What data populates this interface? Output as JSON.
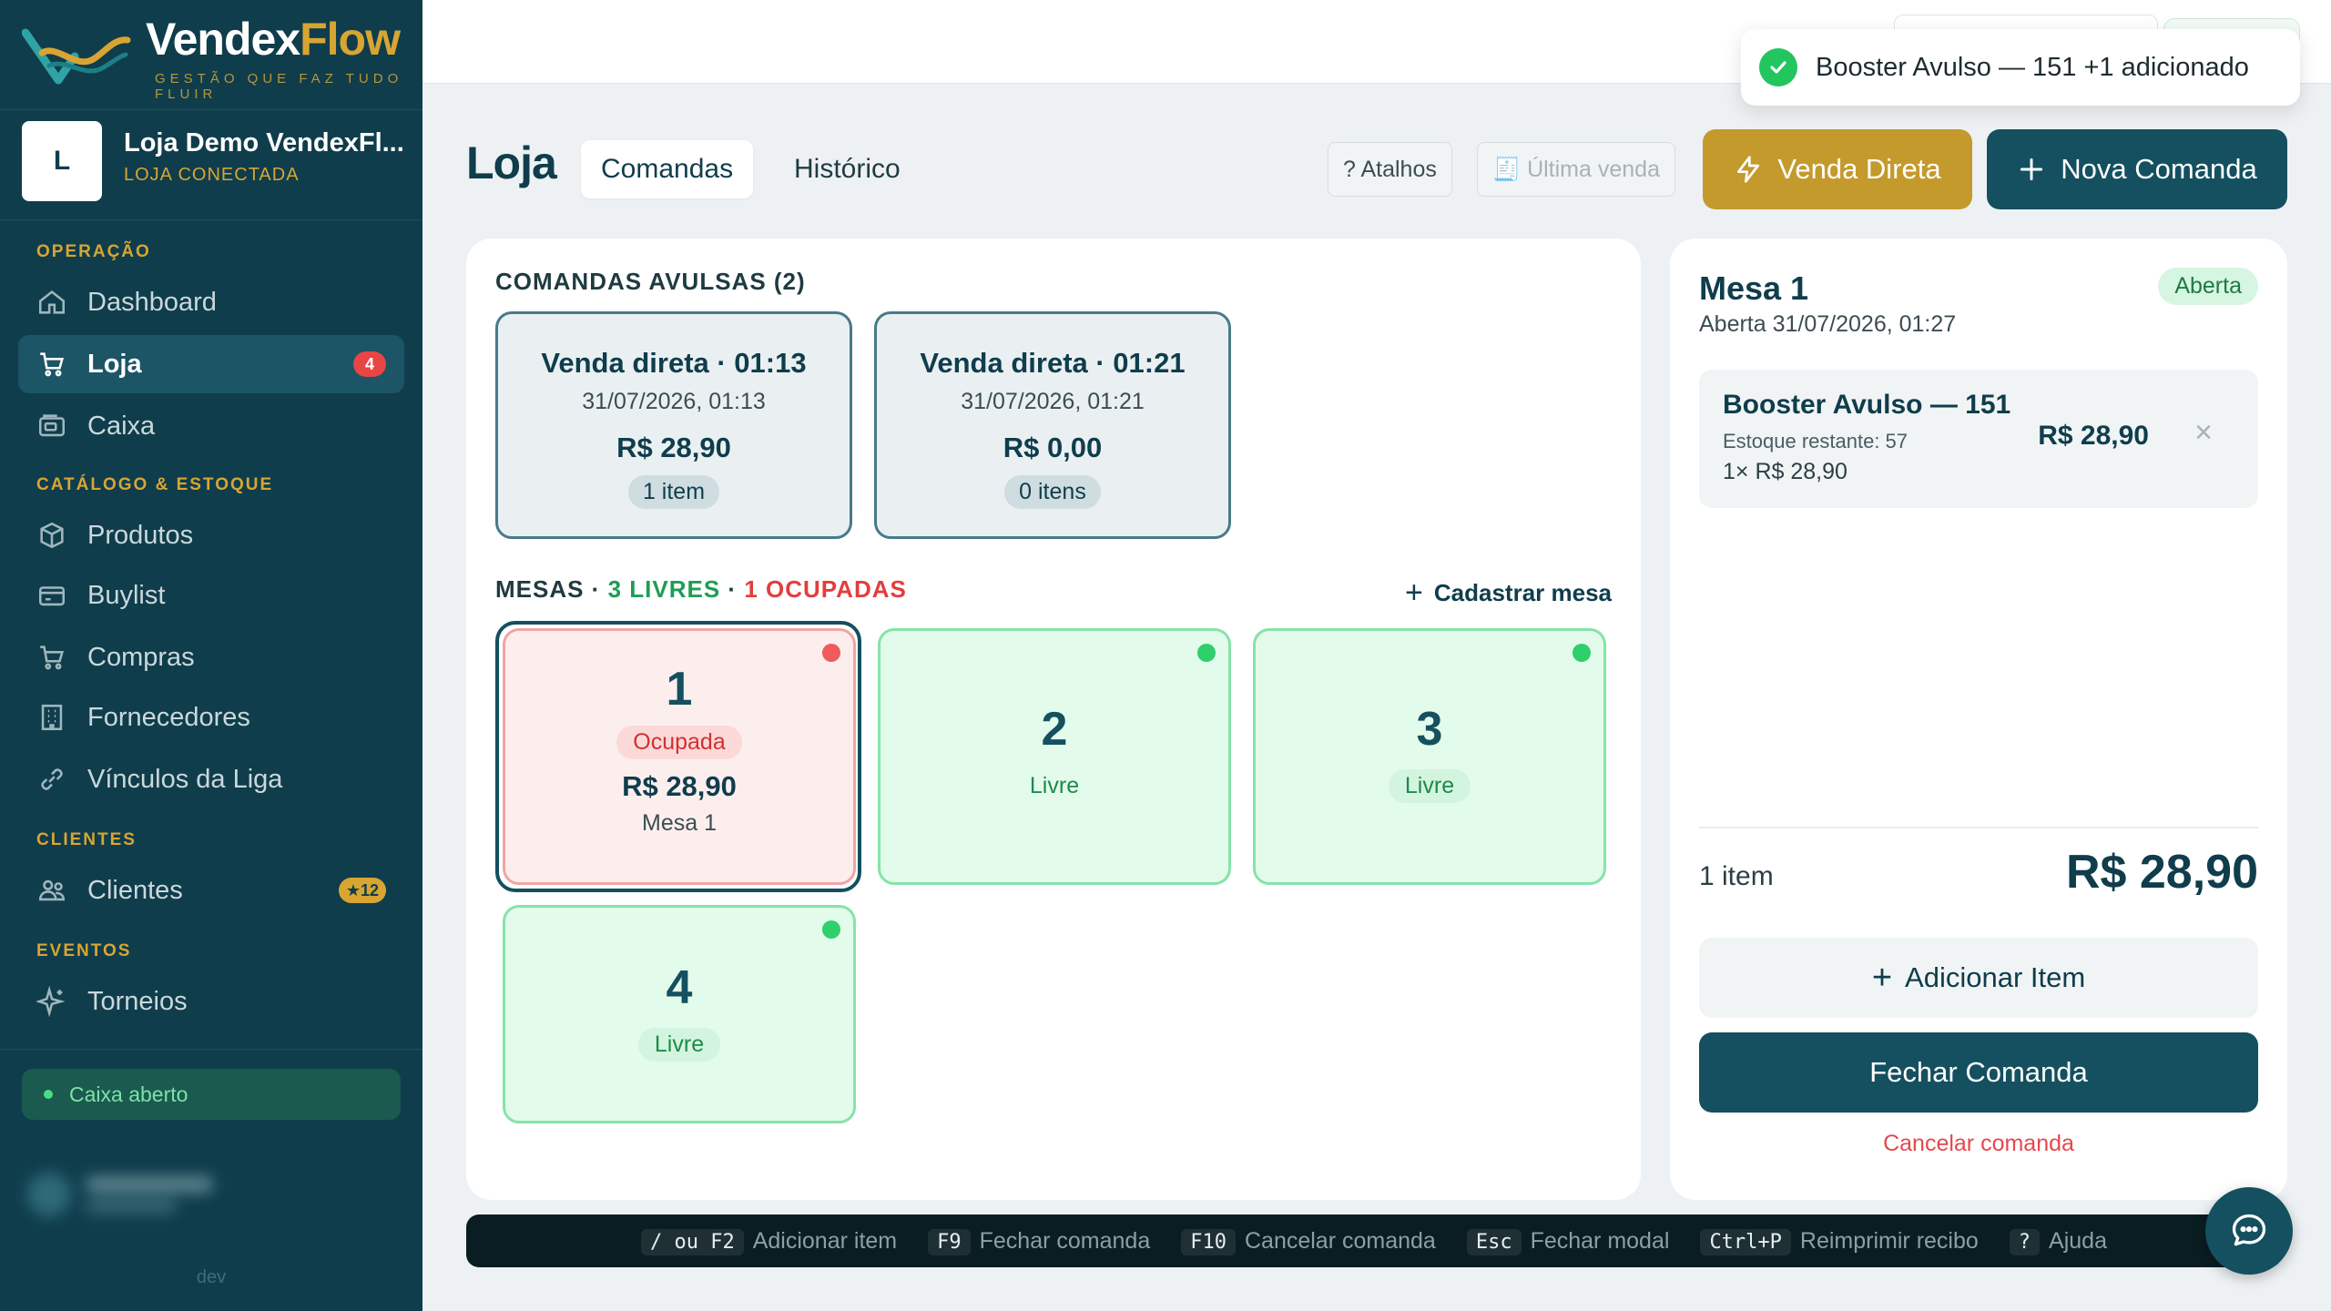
{
  "brand": {
    "name_a": "Vendex",
    "name_b": "Flow",
    "tagline": "GESTÃO QUE FAZ TUDO FLUIR"
  },
  "store": {
    "initial": "L",
    "name": "Loja Demo VendexFl...",
    "status": "LOJA CONECTADA"
  },
  "sidebar": {
    "sections": [
      "OPERAÇÃO",
      "CATÁLOGO & ESTOQUE",
      "CLIENTES",
      "EVENTOS"
    ],
    "items": [
      {
        "label": "Dashboard",
        "icon": "home-icon"
      },
      {
        "label": "Loja",
        "icon": "cart-icon",
        "badge": "4"
      },
      {
        "label": "Caixa",
        "icon": "register-icon"
      },
      {
        "label": "Produtos",
        "icon": "box-icon"
      },
      {
        "label": "Buylist",
        "icon": "card-icon"
      },
      {
        "label": "Compras",
        "icon": "cart-icon"
      },
      {
        "label": "Fornecedores",
        "icon": "building-icon"
      },
      {
        "label": "Vínculos da Liga",
        "icon": "link-icon"
      },
      {
        "label": "Clientes",
        "icon": "users-icon",
        "badge": "★12"
      },
      {
        "label": "Torneios",
        "icon": "sparkle-icon"
      }
    ],
    "caixa_status": "Caixa aberto",
    "footer": "dev"
  },
  "toast": {
    "text": "Booster Avulso — 151 +1 adicionado"
  },
  "header": {
    "title": "Loja",
    "tabs": [
      "Comandas",
      "Histórico"
    ],
    "atalhos": "? Atalhos",
    "ultima_venda": "🧾 Última venda",
    "venda_direta": "Venda Direta",
    "nova_comanda": "Nova Comanda"
  },
  "avulsas": {
    "title": "COMANDAS AVULSAS (2)",
    "cards": [
      {
        "title": "Venda direta · 01:13",
        "date": "31/07/2026, 01:13",
        "value": "R$ 28,90",
        "count": "1 item"
      },
      {
        "title": "Venda direta · 01:21",
        "date": "31/07/2026, 01:21",
        "value": "R$ 0,00",
        "count": "0 itens"
      }
    ]
  },
  "mesas": {
    "label": "MESAS ·",
    "livres": "3 LIVRES",
    "sep": "·",
    "ocupadas": "1 OCUPADAS",
    "cadastrar": "Cadastrar mesa",
    "items": [
      {
        "num": "1",
        "status": "Ocupada",
        "value": "R$ 28,90",
        "sub": "Mesa 1"
      },
      {
        "num": "2",
        "status": "Livre"
      },
      {
        "num": "3",
        "status": "Livre"
      },
      {
        "num": "4",
        "status": "Livre"
      }
    ]
  },
  "detail": {
    "title": "Mesa 1",
    "opened": "Aberta 31/07/2026, 01:27",
    "badge": "Aberta",
    "item": {
      "name": "Booster Avulso — 151",
      "stock": "Estoque restante: 57",
      "qty": "1× R$ 28,90",
      "price": "R$ 28,90",
      "remove": "×"
    },
    "count": "1 item",
    "total": "R$ 28,90",
    "add": "Adicionar Item",
    "close": "Fechar Comanda",
    "cancel": "Cancelar comanda"
  },
  "shortcuts": [
    {
      "key": "/ ou F2",
      "label": "Adicionar item"
    },
    {
      "key": "F9",
      "label": "Fechar comanda"
    },
    {
      "key": "F10",
      "label": "Cancelar comanda"
    },
    {
      "key": "Esc",
      "label": "Fechar modal"
    },
    {
      "key": "Ctrl+P",
      "label": "Reimprimir recibo"
    },
    {
      "key": "?",
      "label": "Ajuda"
    }
  ],
  "colors": {
    "sidebar": "#0f3d4c",
    "gold": "#c9a032",
    "teal": "#14505f",
    "danger": "#e5484d",
    "success": "#22c55e"
  }
}
